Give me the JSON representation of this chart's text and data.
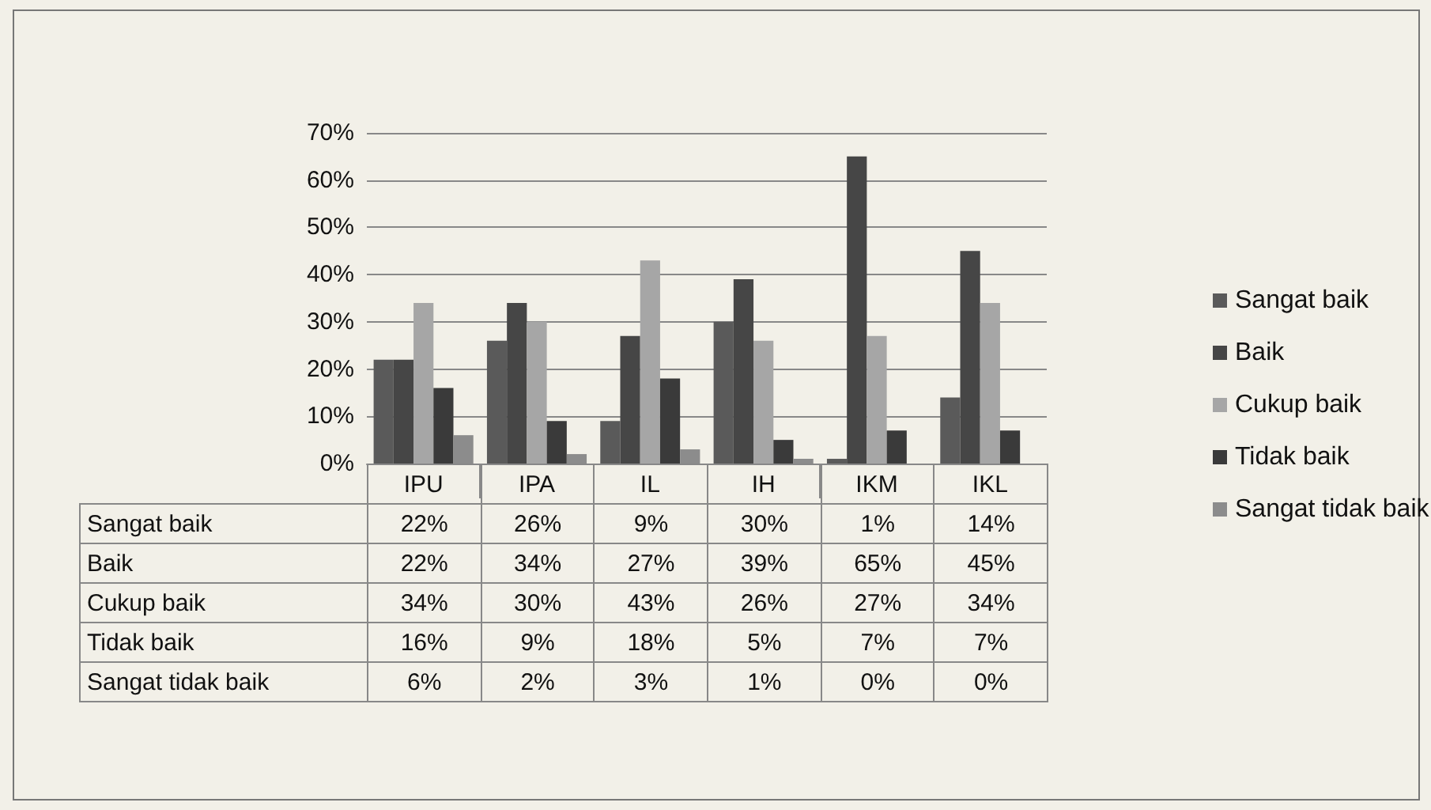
{
  "chart_data": {
    "type": "bar",
    "categories": [
      "IPU",
      "IPA",
      "IL",
      "IH",
      "IKM",
      "IKL"
    ],
    "series": [
      {
        "name": "Sangat baik",
        "color": "#5a5a5a",
        "values": [
          22,
          26,
          9,
          30,
          1,
          14
        ],
        "value_labels": [
          "22%",
          "26%",
          "9%",
          "30%",
          "1%",
          "14%"
        ]
      },
      {
        "name": "Baik",
        "color": "#464646",
        "values": [
          22,
          34,
          27,
          39,
          65,
          45
        ],
        "value_labels": [
          "22%",
          "34%",
          "27%",
          "39%",
          "65%",
          "45%"
        ]
      },
      {
        "name": "Cukup baik",
        "color": "#a6a6a6",
        "values": [
          34,
          30,
          43,
          26,
          27,
          34
        ],
        "value_labels": [
          "34%",
          "30%",
          "43%",
          "26%",
          "27%",
          "34%"
        ]
      },
      {
        "name": "Tidak baik",
        "color": "#3a3a3a",
        "values": [
          16,
          9,
          18,
          5,
          7,
          7
        ],
        "value_labels": [
          "16%",
          "9%",
          "18%",
          "5%",
          "7%",
          "7%"
        ]
      },
      {
        "name": "Sangat tidak baik",
        "color": "#8c8c8c",
        "values": [
          6,
          2,
          3,
          1,
          0,
          0
        ],
        "value_labels": [
          "6%",
          "2%",
          "3%",
          "1%",
          "0%",
          "0%"
        ]
      }
    ],
    "ylim": [
      0,
      70
    ],
    "yticks": [
      {
        "value": 0,
        "label": "0%"
      },
      {
        "value": 10,
        "label": "10%"
      },
      {
        "value": 20,
        "label": "20%"
      },
      {
        "value": 30,
        "label": "30%"
      },
      {
        "value": 40,
        "label": "40%"
      },
      {
        "value": 50,
        "label": "50%"
      },
      {
        "value": 60,
        "label": "60%"
      },
      {
        "value": 70,
        "label": "70%"
      }
    ],
    "grid": "y",
    "legend": "right"
  }
}
